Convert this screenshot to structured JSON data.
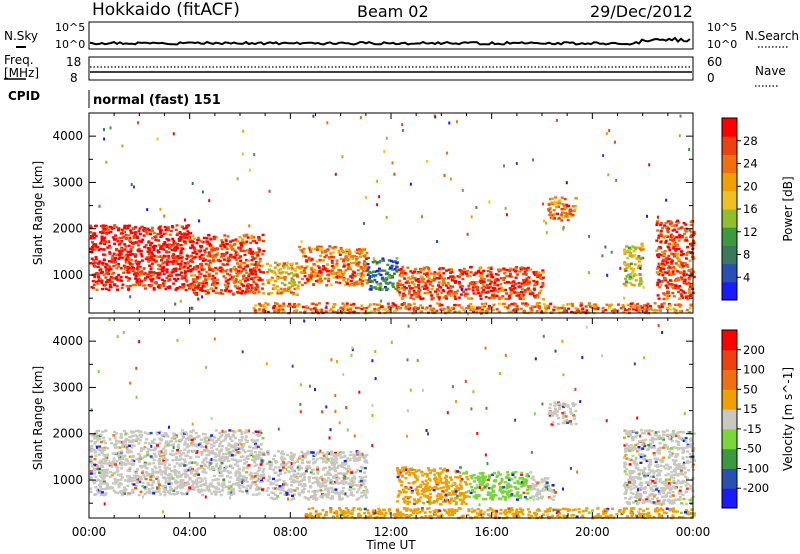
{
  "header": {
    "station": "Hokkaido (fitACF)",
    "beam": "Beam 02",
    "date": "29/Dec/2012"
  },
  "top_panels": {
    "nsky_label": "N.Sky",
    "nsearch_label": "N.Search",
    "noise_left_ticks": [
      "10^5",
      "10^0"
    ],
    "noise_right_ticks": [
      "10^5",
      "10^0"
    ],
    "freq_label": "Freq.",
    "freq_unit": "[MHz]",
    "freq_ticks": [
      "18",
      "8"
    ],
    "nave_label": "Nave",
    "nave_ticks": [
      "60",
      "0"
    ],
    "cpid_label": "CPID",
    "cpid_value": "normal (fast) 151"
  },
  "chart_data": [
    {
      "type": "heatmap",
      "quantity": "Power",
      "ylabel": "Slant Range [km]",
      "xlabel": "",
      "x_ticks": [
        "00:00",
        "04:00",
        "08:00",
        "12:00",
        "16:00",
        "20:00",
        "00:00"
      ],
      "y_ticks": [
        1000,
        2000,
        3000,
        4000
      ],
      "xlim_hours": [
        0,
        24
      ],
      "ylim_km": [
        180,
        4500
      ],
      "colorbar": {
        "label": "Power [dB]",
        "ticks": [
          "4",
          "8",
          "12",
          "16",
          "20",
          "24",
          "28"
        ],
        "colors": [
          "#1a1aff",
          "#2850b4",
          "#3a7a5a",
          "#3c9a3c",
          "#8fbf2a",
          "#f0c020",
          "#f0a000",
          "#f07010",
          "#ee4010",
          "#ff0000"
        ]
      },
      "regions": [
        {
          "t0": 0.0,
          "t1": 4.0,
          "r0": 700,
          "r1": 2100,
          "level": 9
        },
        {
          "t0": 4.0,
          "t1": 6.9,
          "r0": 600,
          "r1": 1900,
          "level": 8
        },
        {
          "t0": 7.0,
          "t1": 8.3,
          "r0": 600,
          "r1": 1300,
          "level": 6
        },
        {
          "t0": 8.3,
          "t1": 11.0,
          "r0": 800,
          "r1": 1650,
          "level": 7
        },
        {
          "t0": 11.0,
          "t1": 12.2,
          "r0": 700,
          "r1": 1400,
          "level": 2
        },
        {
          "t0": 12.2,
          "t1": 18.0,
          "r0": 500,
          "r1": 1200,
          "level": 8
        },
        {
          "t0": 18.2,
          "t1": 19.3,
          "r0": 2200,
          "r1": 2700,
          "level": 7
        },
        {
          "t0": 21.2,
          "t1": 22.0,
          "r0": 800,
          "r1": 1700,
          "level": 5
        },
        {
          "t0": 22.5,
          "t1": 24.0,
          "r0": 500,
          "r1": 2200,
          "level": 8
        },
        {
          "t0": 6.5,
          "t1": 24.0,
          "r0": 200,
          "r1": 420,
          "level": 7
        }
      ]
    },
    {
      "type": "heatmap",
      "quantity": "Velocity",
      "ylabel": "Slant Range [km]",
      "xlabel": "Time UT",
      "x_ticks": [
        "00:00",
        "04:00",
        "08:00",
        "12:00",
        "16:00",
        "20:00",
        "00:00"
      ],
      "y_ticks": [
        1000,
        2000,
        3000,
        4000
      ],
      "xlim_hours": [
        0,
        24
      ],
      "ylim_km": [
        180,
        4500
      ],
      "colorbar": {
        "label": "Velocity [m s^-1]",
        "ticks": [
          "200",
          "100",
          "50",
          "15",
          "-15",
          "-50",
          "-100",
          "-200"
        ],
        "colors": [
          "#1a1aff",
          "#2850b4",
          "#3c9a3c",
          "#7ad63a",
          "#c8c8c0",
          "#f0a000",
          "#f07010",
          "#ee4010",
          "#ff0000"
        ]
      },
      "regions": [
        {
          "t0": 0.0,
          "t1": 6.9,
          "r0": 700,
          "r1": 2100,
          "color": "#c8c8c0"
        },
        {
          "t0": 7.0,
          "t1": 11.0,
          "r0": 600,
          "r1": 1650,
          "color": "#c8c8c0"
        },
        {
          "t0": 12.2,
          "t1": 15.0,
          "r0": 500,
          "r1": 1300,
          "color": "#f0a000"
        },
        {
          "t0": 15.0,
          "t1": 17.5,
          "r0": 600,
          "r1": 1200,
          "color": "#7ad63a"
        },
        {
          "t0": 17.5,
          "t1": 18.5,
          "r0": 600,
          "r1": 1100,
          "color": "#c8c8c0"
        },
        {
          "t0": 18.2,
          "t1": 19.3,
          "r0": 2200,
          "r1": 2700,
          "color": "#c8c8c0"
        },
        {
          "t0": 21.2,
          "t1": 24.0,
          "r0": 500,
          "r1": 2100,
          "color": "#c8c8c0"
        },
        {
          "t0": 8.5,
          "t1": 24.0,
          "r0": 200,
          "r1": 420,
          "color": "#f0a000"
        }
      ]
    }
  ]
}
